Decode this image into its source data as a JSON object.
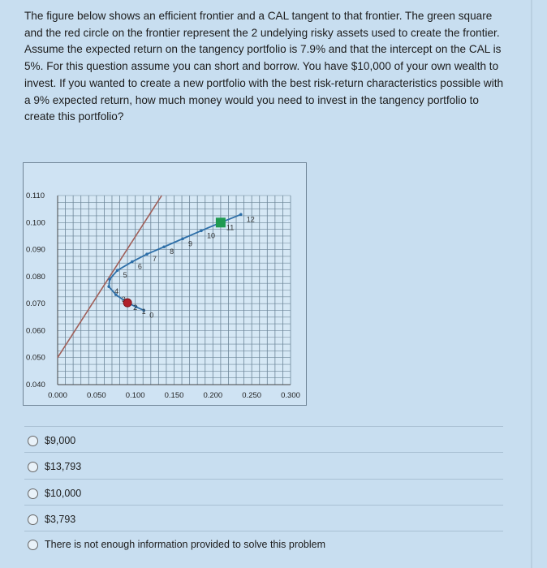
{
  "question": {
    "text": "The figure below shows an efficient frontier and a CAL tangent to that frontier. The green square and the red circle on the frontier represent the 2 undelying risky assets used to create the frontier. Assume the expected return on the tangency portfolio is 7.9% and that the intercept on the CAL is 5%. For this question assume you can short and borrow. You have $10,000 of your own wealth to invest. If you wanted to create a new portfolio with the best risk-return characteristics possible with a 9% expected return, how much money would you need to invest in the tangency portfolio to create this portfolio?"
  },
  "chart_data": {
    "type": "line",
    "xlim": [
      0,
      0.3
    ],
    "ylim": [
      0.04,
      0.11
    ],
    "x_ticks": [
      "0.000",
      "0.050",
      "0.100",
      "0.150",
      "0.200",
      "0.250",
      "0.300"
    ],
    "y_ticks": [
      "0.040",
      "0.050",
      "0.060",
      "0.070",
      "0.080",
      "0.090",
      "0.100",
      "0.110"
    ],
    "grid": true,
    "frontier": {
      "color": "#2e6fa8",
      "points": [
        {
          "label": "0",
          "x": 0.111,
          "y": 0.0675
        },
        {
          "label": "1",
          "x": 0.101,
          "y": 0.0688
        },
        {
          "label": "2",
          "x": 0.09,
          "y": 0.0703
        },
        {
          "label": "3",
          "x": 0.075,
          "y": 0.0733
        },
        {
          "label": "4",
          "x": 0.066,
          "y": 0.0763
        },
        {
          "label": "",
          "x": 0.067,
          "y": 0.079
        },
        {
          "label": "5",
          "x": 0.077,
          "y": 0.0823
        },
        {
          "label": "6",
          "x": 0.096,
          "y": 0.0855
        },
        {
          "label": "7",
          "x": 0.115,
          "y": 0.0883
        },
        {
          "label": "8",
          "x": 0.137,
          "y": 0.091
        },
        {
          "label": "9",
          "x": 0.161,
          "y": 0.094
        },
        {
          "label": "10",
          "x": 0.185,
          "y": 0.097
        },
        {
          "label": "11",
          "x": 0.21,
          "y": 0.1
        },
        {
          "label": "12",
          "x": 0.236,
          "y": 0.103
        }
      ]
    },
    "cal": {
      "color": "#a0605a",
      "x": [
        0,
        0.134
      ],
      "y": [
        0.05,
        0.11
      ]
    },
    "assets": [
      {
        "shape": "circle",
        "color": "#b0202a",
        "x": 0.09,
        "y": 0.0703
      },
      {
        "shape": "square",
        "color": "#1f9a50",
        "x": 0.21,
        "y": 0.1
      }
    ]
  },
  "options": [
    {
      "label": "$9,000"
    },
    {
      "label": "$13,793"
    },
    {
      "label": "$10,000"
    },
    {
      "label": "$3,793"
    },
    {
      "label": "There is not enough information provided to solve this problem"
    }
  ]
}
